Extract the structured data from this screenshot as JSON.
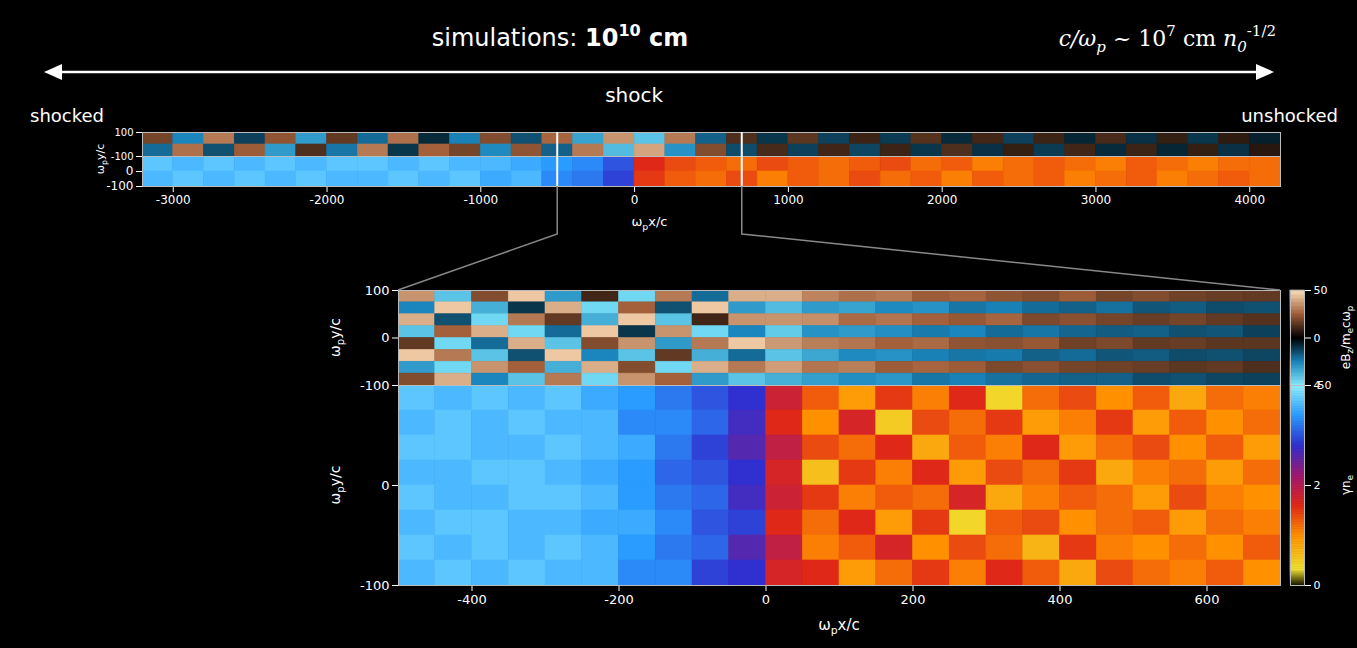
{
  "header": {
    "title": {
      "text": "simulations: ",
      "base": "10",
      "exponent": "10",
      "unit": " cm"
    },
    "scale_note": {
      "lhs": "c/ω",
      "lhs_sub": "p",
      "relation": " ~ ",
      "base": "10",
      "exponent": "7",
      "unit": " cm ",
      "var": "n",
      "var_sub": "0",
      "var_exponent": "-1/2"
    },
    "annotations": [
      {
        "text": "shock",
        "x": 0
      }
    ],
    "left_label": "shocked",
    "right_label": "unshocked"
  },
  "chart_data": [
    {
      "type": "heatmap",
      "ylabel": [
        {
          "text": "ω",
          "sub": "p"
        },
        {
          "text": "y/c"
        }
      ],
      "xlim": [
        -3200,
        4200
      ],
      "ylim": [
        -100,
        100
      ],
      "yticks": [
        -100,
        100
      ],
      "tick_labels": "y",
      "color_range": [
        -50,
        50
      ],
      "cells": [
        [
          18,
          -25,
          30,
          -12,
          22,
          -30,
          15,
          -20,
          28,
          -8,
          -24,
          20,
          -15,
          26,
          -32,
          35,
          -40,
          30,
          -18,
          12,
          -10,
          14,
          -12,
          9,
          -11,
          13,
          -8,
          10,
          -12,
          9,
          -7,
          11,
          -9,
          8,
          -10,
          7,
          -6
        ],
        [
          -20,
          28,
          -15,
          24,
          -30,
          12,
          -22,
          30,
          -10,
          25,
          18,
          -26,
          22,
          -18,
          30,
          -38,
          38,
          -28,
          20,
          -14,
          11,
          -12,
          10,
          -13,
          9,
          -10,
          12,
          -9,
          8,
          -11,
          10,
          -8,
          9,
          -7,
          8,
          -9,
          6
        ]
      ]
    },
    {
      "type": "heatmap",
      "xlabel": [
        {
          "text": "ω",
          "sub": "p"
        },
        {
          "text": "x/c"
        }
      ],
      "xlim": [
        -3200,
        4200
      ],
      "xticks": [
        -3000,
        -2000,
        -1000,
        0,
        1000,
        2000,
        3000,
        4000
      ],
      "ylim": [
        -100,
        100
      ],
      "yticks": [
        -100,
        0
      ],
      "color_range": [
        0,
        4
      ],
      "cells": [
        [
          3.7,
          3.6,
          3.7,
          3.6,
          3.7,
          3.6,
          3.7,
          3.7,
          3.6,
          3.7,
          3.6,
          3.6,
          3.5,
          3.4,
          3.3,
          3.0,
          1.6,
          1.4,
          1.3,
          1.2,
          1.4,
          1.3,
          1.2,
          1.3,
          1.4,
          1.2,
          1.3,
          1.1,
          1.2,
          1.3,
          1.2,
          1.1,
          1.3,
          1.2,
          1.1,
          1.2,
          1.2
        ],
        [
          3.6,
          3.7,
          3.6,
          3.7,
          3.6,
          3.7,
          3.6,
          3.6,
          3.7,
          3.6,
          3.7,
          3.5,
          3.6,
          3.3,
          3.2,
          2.9,
          1.5,
          1.3,
          1.2,
          1.4,
          1.1,
          1.3,
          1.2,
          1.4,
          1.2,
          1.3,
          1.1,
          1.3,
          1.2,
          1.3,
          1.1,
          1.2,
          1.3,
          1.1,
          1.2,
          1.3,
          1.2
        ]
      ]
    },
    {
      "type": "heatmap",
      "ylabel": [
        {
          "text": "ω",
          "sub": "p"
        },
        {
          "text": "y/c"
        }
      ],
      "xlim": [
        -500,
        700
      ],
      "ylim": [
        -100,
        100
      ],
      "yticks": [
        -100,
        0,
        100
      ],
      "tick_labels": "y",
      "colorbar": {
        "label": [
          {
            "text": "eB",
            "sub": "z"
          },
          {
            "text": "/m",
            "sub": "e"
          },
          {
            "text": "cω",
            "sub": "p"
          }
        ],
        "range": [
          -50,
          50
        ],
        "ticks": [
          -50,
          0,
          50
        ]
      },
      "cells": [
        [
          35,
          -40,
          20,
          45,
          -30,
          10,
          -45,
          30,
          -20,
          40,
          40,
          32,
          28,
          30,
          24,
          26,
          22,
          20,
          24,
          18,
          20,
          17,
          16,
          15
        ],
        [
          -25,
          45,
          -35,
          -10,
          40,
          -45,
          25,
          -15,
          45,
          -30,
          -38,
          -30,
          -32,
          -26,
          -28,
          -22,
          -24,
          -20,
          -18,
          -21,
          -16,
          -17,
          -14,
          -15
        ],
        [
          40,
          -15,
          -45,
          30,
          15,
          -35,
          45,
          -40,
          10,
          35,
          35,
          34,
          27,
          29,
          25,
          23,
          26,
          19,
          21,
          18,
          16,
          18,
          15,
          13
        ],
        [
          -40,
          25,
          40,
          -45,
          -20,
          45,
          -10,
          35,
          -45,
          -25,
          -42,
          -28,
          -30,
          -27,
          -23,
          -25,
          -20,
          -22,
          -19,
          -17,
          -18,
          -15,
          -16,
          -12
        ],
        [
          15,
          -45,
          -20,
          40,
          -40,
          20,
          35,
          -30,
          30,
          45,
          36,
          31,
          29,
          25,
          27,
          22,
          21,
          23,
          17,
          19,
          15,
          16,
          14,
          14
        ],
        [
          45,
          30,
          -40,
          -15,
          45,
          -25,
          -40,
          15,
          -35,
          -20,
          -40,
          -33,
          -26,
          -28,
          -24,
          -22,
          -23,
          -18,
          -20,
          -16,
          -17,
          -14,
          -15,
          -13
        ],
        [
          -30,
          -45,
          35,
          25,
          -35,
          40,
          20,
          -45,
          40,
          30,
          37,
          29,
          31,
          24,
          26,
          24,
          19,
          21,
          18,
          17,
          16,
          14,
          15,
          12
        ],
        [
          20,
          40,
          -25,
          -40,
          30,
          -45,
          35,
          25,
          -30,
          -40,
          -35,
          -31,
          -27,
          -29,
          -22,
          -24,
          -21,
          -19,
          -18,
          -18,
          -14,
          -15,
          -13,
          -12
        ]
      ]
    },
    {
      "type": "heatmap",
      "xlabel": [
        {
          "text": "ω",
          "sub": "p"
        },
        {
          "text": "x/c"
        }
      ],
      "ylabel": [
        {
          "text": "ω",
          "sub": "p"
        },
        {
          "text": "y/c"
        }
      ],
      "xlim": [
        -500,
        700
      ],
      "xticks": [
        -400,
        -200,
        0,
        200,
        400,
        600
      ],
      "ylim": [
        -100,
        100
      ],
      "yticks": [
        -100,
        0
      ],
      "colorbar": {
        "label": [
          {
            "text": "γn",
            "sub": "e"
          }
        ],
        "range": [
          0,
          4
        ],
        "ticks": [
          0,
          2,
          4
        ]
      },
      "cells": [
        [
          3.7,
          3.6,
          3.7,
          3.6,
          3.7,
          3.5,
          3.4,
          3.2,
          3.0,
          2.8,
          1.8,
          1.3,
          0.9,
          1.5,
          1.1,
          1.6,
          0.4,
          1.2,
          1.4,
          1.0,
          1.3,
          0.8,
          1.2,
          1.1
        ],
        [
          3.6,
          3.7,
          3.6,
          3.7,
          3.6,
          3.6,
          3.3,
          3.3,
          3.1,
          2.7,
          1.6,
          1.0,
          1.7,
          0.5,
          1.4,
          1.2,
          1.5,
          0.9,
          1.1,
          1.5,
          0.9,
          1.3,
          1.0,
          1.2
        ],
        [
          3.7,
          3.7,
          3.6,
          3.6,
          3.7,
          3.6,
          3.5,
          3.2,
          2.9,
          2.6,
          1.9,
          1.4,
          1.2,
          1.6,
          0.8,
          1.3,
          1.1,
          1.6,
          0.9,
          1.2,
          1.4,
          1.0,
          1.3,
          0.9
        ],
        [
          3.6,
          3.6,
          3.7,
          3.7,
          3.6,
          3.5,
          3.4,
          3.1,
          3.0,
          2.8,
          1.7,
          0.6,
          1.5,
          1.1,
          1.6,
          0.9,
          1.4,
          1.2,
          1.5,
          0.8,
          1.1,
          1.2,
          0.9,
          1.2
        ],
        [
          3.7,
          3.6,
          3.6,
          3.7,
          3.7,
          3.6,
          3.4,
          3.2,
          3.1,
          2.7,
          1.8,
          1.5,
          1.1,
          1.3,
          1.2,
          1.7,
          0.8,
          1.1,
          1.3,
          1.2,
          0.9,
          1.4,
          1.1,
          1.0
        ],
        [
          3.6,
          3.7,
          3.7,
          3.6,
          3.6,
          3.5,
          3.5,
          3.3,
          3.0,
          2.9,
          1.6,
          1.2,
          1.6,
          0.9,
          1.5,
          0.4,
          1.3,
          1.4,
          1.0,
          1.2,
          1.3,
          0.9,
          1.2,
          1.1
        ],
        [
          3.7,
          3.6,
          3.7,
          3.6,
          3.7,
          3.6,
          3.4,
          3.2,
          3.1,
          2.6,
          1.9,
          1.1,
          1.3,
          1.7,
          1.0,
          1.4,
          1.2,
          0.7,
          1.5,
          1.1,
          1.0,
          1.2,
          1.0,
          1.3
        ],
        [
          3.6,
          3.7,
          3.6,
          3.7,
          3.6,
          3.6,
          3.3,
          3.3,
          2.9,
          2.8,
          1.7,
          1.6,
          0.9,
          1.2,
          1.5,
          1.1,
          1.6,
          1.3,
          0.8,
          1.4,
          1.2,
          1.1,
          1.3,
          1.0
        ]
      ]
    }
  ]
}
